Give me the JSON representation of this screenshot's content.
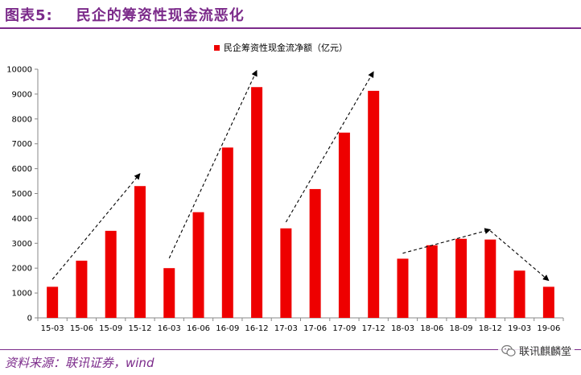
{
  "header": {
    "title": "图表5:    民企的筹资性现金流恶化"
  },
  "footer": {
    "source": "资料来源：联讯证券，wind",
    "watermark": "联讯麒麟堂"
  },
  "colors": {
    "bar": "#ee0000",
    "accent": "#7b2a8a",
    "arrow": "#000000"
  },
  "chart_data": {
    "type": "bar",
    "title": "",
    "xlabel": "",
    "ylabel": "",
    "legend": {
      "position": "top",
      "label": "民企筹资性现金流净额（亿元）"
    },
    "categories": [
      "15-03",
      "15-06",
      "15-09",
      "15-12",
      "16-03",
      "16-06",
      "16-09",
      "16-12",
      "17-03",
      "17-06",
      "17-09",
      "17-12",
      "18-03",
      "18-06",
      "18-09",
      "18-12",
      "19-03",
      "19-06"
    ],
    "series": [
      {
        "name": "民企筹资性现金流净额（亿元）",
        "values": [
          1250,
          2300,
          3500,
          5300,
          2000,
          4250,
          6850,
          9280,
          3600,
          5180,
          7450,
          9130,
          2380,
          2920,
          3180,
          3150,
          1900,
          1250
        ]
      }
    ],
    "ylim": [
      0,
      10000
    ],
    "yticks": [
      0,
      1000,
      2000,
      3000,
      4000,
      5000,
      6000,
      7000,
      8000,
      9000,
      10000
    ],
    "grid": false,
    "trend_arrows": [
      {
        "from": [
          "15-03",
          1550
        ],
        "to": [
          "15-12",
          5800
        ]
      },
      {
        "from": [
          "16-03",
          2400
        ],
        "to": [
          "16-12",
          9950
        ]
      },
      {
        "from": [
          "17-03",
          3850
        ],
        "to": [
          "17-12",
          9900
        ]
      },
      {
        "from": [
          "18-03",
          2600
        ],
        "to": [
          "18-12",
          3550
        ]
      },
      {
        "from": [
          "18-12",
          3500
        ],
        "to": [
          "19-06",
          1500
        ]
      }
    ]
  }
}
